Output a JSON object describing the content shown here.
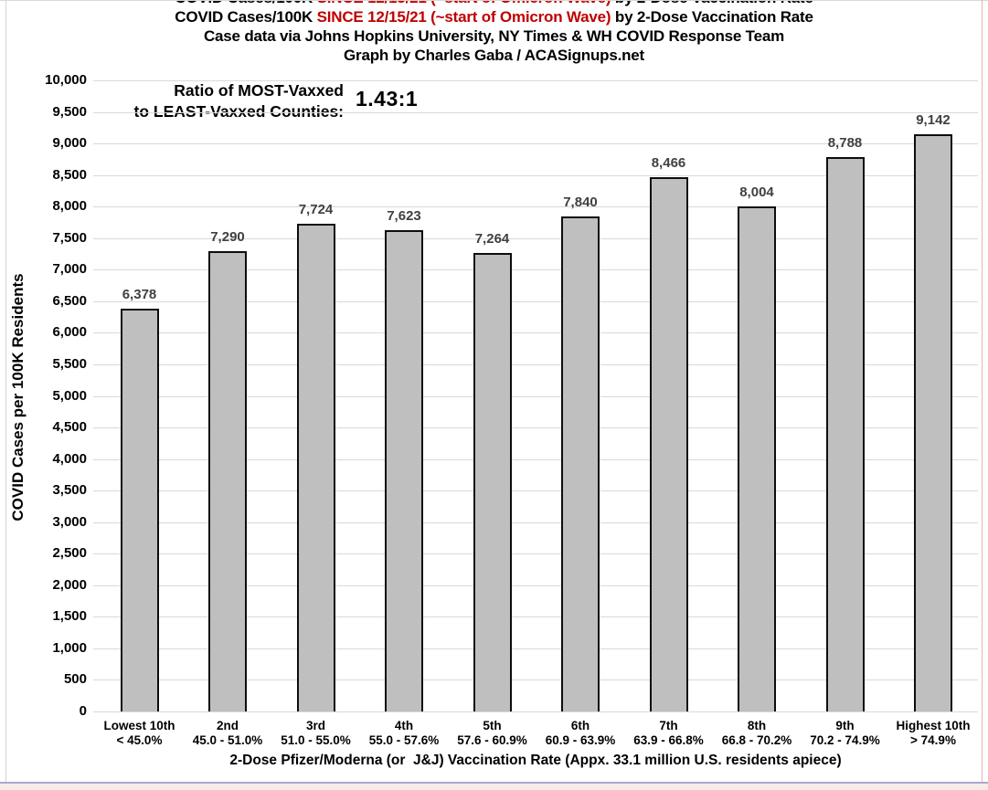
{
  "header": {
    "title_part1": "COVID Cases/100K ",
    "title_red": "SINCE 12/15/21 (~start of Omicron Wave)",
    "title_part2": " by 2-Dose Vaccination Rate",
    "subtitle": "Case data via Johns Hopkins University, NY Times & WH COVID Response Team",
    "credit": "Graph by Charles Gaba / ACASignups.net"
  },
  "annotation": {
    "line1": "Ratio of MOST-Vaxxed",
    "line2": "to LEAST-Vaxxed Counties:",
    "ratio_value": "1.43:1"
  },
  "chart_data": {
    "type": "bar",
    "title": "COVID Cases/100K SINCE 12/15/21 (~start of Omicron Wave) by 2-Dose Vaccination Rate",
    "subtitle": "Case data via Johns Hopkins University, NY Times & WH COVID Response Team",
    "credit": "Graph by Charles Gaba / ACASignups.net",
    "categories": [
      "Lowest 10th",
      "2nd",
      "3rd",
      "4th",
      "5th",
      "6th",
      "7th",
      "8th",
      "9th",
      "Highest 10th"
    ],
    "category_ranges": [
      "< 45.0%",
      "45.0 - 51.0%",
      "51.0 - 55.0%",
      "55.0 - 57.6%",
      "57.6 - 60.9%",
      "60.9 - 63.9%",
      "63.9 - 66.8%",
      "66.8 - 70.2%",
      "70.2 - 74.9%",
      "> 74.9%"
    ],
    "values": [
      6378,
      7290,
      7724,
      7623,
      7264,
      7840,
      8466,
      8004,
      8788,
      9142
    ],
    "value_labels": [
      "6,378",
      "7,290",
      "7,724",
      "7,623",
      "7,264",
      "7,840",
      "8,466",
      "8,004",
      "8,788",
      "9,142"
    ],
    "ylabel": "COVID Cases per 100K Residents",
    "xlabel": "2-Dose Pfizer/Moderna (or  J&J) Vaccination Rate (Appx. 33.1 million U.S. residents apiece)",
    "ylim": [
      0,
      10000
    ],
    "ytick_step": 500,
    "grid": true,
    "legend": "none",
    "annotation_ratio": "1.43:1"
  },
  "colors": {
    "title_red": "#c00000",
    "bar_fill": "#bfbfbf",
    "bar_border": "#0d0d0d",
    "gridline": "#d9d9d9",
    "value_label": "#404040",
    "text": "#000000"
  }
}
